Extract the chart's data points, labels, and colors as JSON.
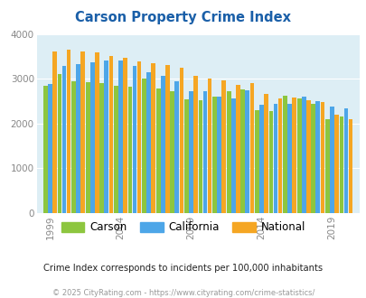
{
  "title": "Carson Property Crime Index",
  "years": [
    1999,
    2000,
    2001,
    2002,
    2003,
    2004,
    2005,
    2006,
    2007,
    2008,
    2009,
    2010,
    2011,
    2012,
    2013,
    2014,
    2015,
    2016,
    2017,
    2018,
    2019,
    2020
  ],
  "carson": [
    2850,
    3100,
    2950,
    2920,
    2900,
    2850,
    2820,
    3000,
    2780,
    2720,
    2550,
    2520,
    2600,
    2730,
    2760,
    2300,
    2280,
    2630,
    2570,
    2440,
    2100,
    2160
  ],
  "california": [
    2880,
    3300,
    3340,
    3380,
    3420,
    3420,
    3300,
    3160,
    3060,
    2950,
    2730,
    2720,
    2600,
    2570,
    2740,
    2430,
    2440,
    2440,
    2610,
    2510,
    2380,
    2350
  ],
  "national": [
    3610,
    3650,
    3620,
    3600,
    3520,
    3480,
    3390,
    3360,
    3310,
    3250,
    3060,
    3010,
    2960,
    2870,
    2900,
    2660,
    2570,
    2580,
    2530,
    2490,
    2200,
    2090
  ],
  "bar_colors": {
    "carson": "#8dc63f",
    "california": "#4da6e8",
    "national": "#f5a623"
  },
  "ylim": [
    0,
    4000
  ],
  "yticks": [
    0,
    1000,
    2000,
    3000,
    4000
  ],
  "xtick_years": [
    1999,
    2004,
    2009,
    2014,
    2019
  ],
  "plot_bg": "#ddeef5",
  "subtitle": "Crime Index corresponds to incidents per 100,000 inhabitants",
  "footer": "© 2025 CityRating.com - https://www.cityrating.com/crime-statistics/",
  "title_color": "#1a5fa8",
  "subtitle_color": "#222222",
  "footer_color": "#999999",
  "legend_labels": [
    "Carson",
    "California",
    "National"
  ]
}
